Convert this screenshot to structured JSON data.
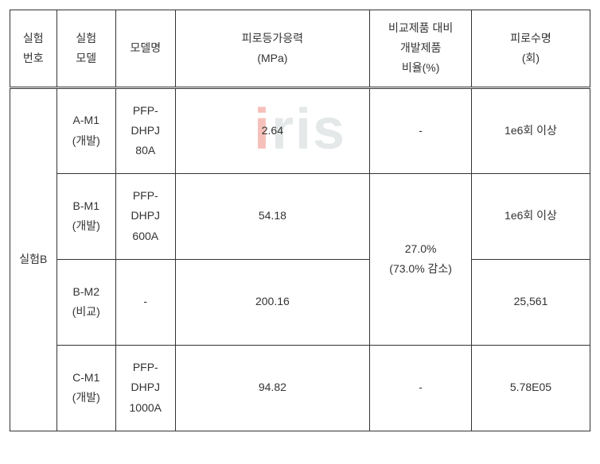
{
  "watermark": {
    "dot": "i",
    "text": "ris"
  },
  "headers": {
    "exp_no": "실험\n번호",
    "model": "실험\n모델",
    "name": "모델명",
    "stress": "피로등가응력\n(MPa)",
    "ratio": "비교제품 대비\n개발제품\n비율(%)",
    "life": "피로수명\n(회)"
  },
  "group": {
    "exp_no": "실험B",
    "ratio_merged": "27.0%\n(73.0% 감소)"
  },
  "rows": [
    {
      "model": "A-M1\n(개발)",
      "name": "PFP-DHPJ 80A",
      "stress": "2.64",
      "ratio": "-",
      "life": "1e6회 이상"
    },
    {
      "model": "B-M1\n(개발)",
      "name": "PFP-DHPJ 600A",
      "stress": "54.18",
      "ratio": null,
      "life": "1e6회 이상"
    },
    {
      "model": "B-M2\n(비교)",
      "name": "-",
      "stress": "200.16",
      "ratio": null,
      "life": "25,561"
    },
    {
      "model": "C-M1\n(개발)",
      "name": "PFP-DHPJ 1000A",
      "stress": "94.82",
      "ratio": "-",
      "life": "5.78E05"
    }
  ],
  "styling": {
    "border_color": "#333333",
    "text_color": "#333333",
    "background": "#ffffff",
    "font_size_pt": 10,
    "header_border_bottom": "double",
    "watermark_red": "#e74c3c",
    "watermark_gray": "#95a5a6"
  }
}
